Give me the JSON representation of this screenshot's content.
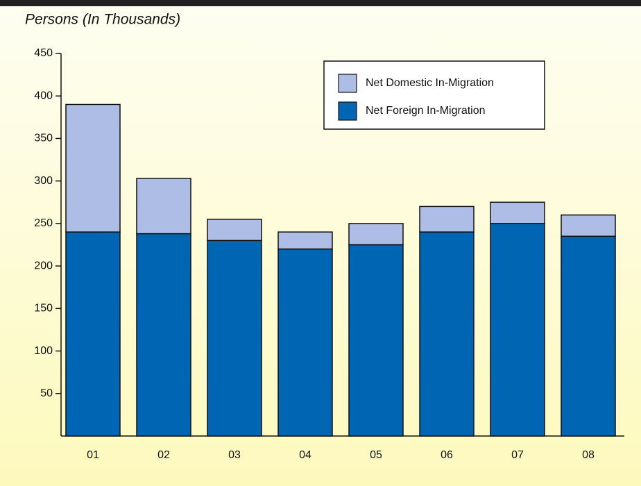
{
  "chart_data": {
    "type": "stacked_bar",
    "title": "Persons (In Thousands)",
    "categories": [
      "01",
      "02",
      "03",
      "04",
      "05",
      "06",
      "07",
      "08"
    ],
    "series": [
      {
        "name": "Net Foreign In-Migration",
        "color": "#0066b3",
        "values": [
          240,
          238,
          230,
          220,
          225,
          240,
          250,
          235
        ]
      },
      {
        "name": "Net Domestic In-Migration",
        "color": "#adbde6",
        "values": [
          150,
          65,
          25,
          20,
          25,
          30,
          25,
          25
        ]
      }
    ],
    "ylim": [
      0,
      450
    ],
    "yticks": [
      50,
      100,
      150,
      200,
      250,
      300,
      350,
      400,
      450
    ],
    "grid": false,
    "legend": "top-right"
  }
}
